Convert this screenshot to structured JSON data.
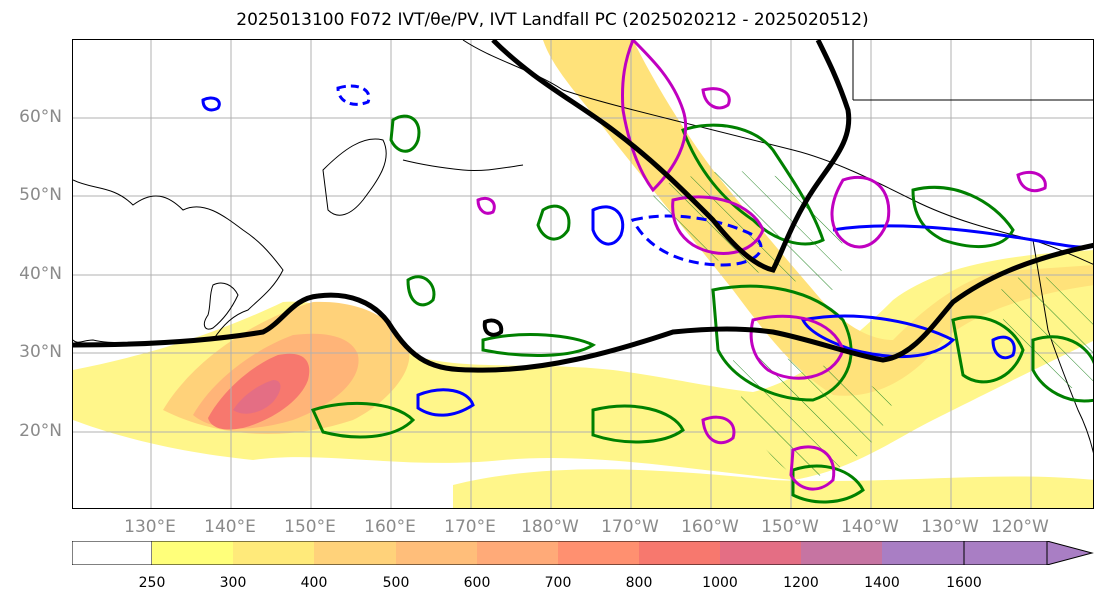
{
  "title": "2025013100 F072 IVT/θe/PV, IVT Landfall PC (2025020212 - 2025020512)",
  "map": {
    "lat_labels": [
      "60°N",
      "50°N",
      "40°N",
      "30°N",
      "20°N"
    ],
    "lon_labels": [
      "130°E",
      "140°E",
      "150°E",
      "160°E",
      "170°E",
      "180°W",
      "170°W",
      "160°W",
      "150°W",
      "140°W",
      "130°W",
      "120°W"
    ],
    "layers": [
      "IVT shading",
      "IVT 250 contour (black)",
      "θe contours (green)",
      "PV contours (blue)",
      "PV contours (magenta)",
      "IVT landfall PC hatching"
    ],
    "colors": {
      "coastline": "#000000",
      "ivt_contour": "#000000",
      "theta_e": "#008000",
      "pv_blue": "#0000ff",
      "pv_magenta": "#c000c0",
      "grid": "#b0b0b0"
    }
  },
  "colorbar": {
    "levels": [
      "250",
      "300",
      "400",
      "500",
      "600",
      "700",
      "800",
      "1000",
      "1200",
      "1400",
      "1600"
    ],
    "colors": [
      "#ffffff",
      "#ffff7a",
      "#ffea7a",
      "#ffd27a",
      "#ffbe7a",
      "#ffaa78",
      "#ff9070",
      "#f7786e",
      "#e46e84",
      "#c674a2",
      "#a97ec4"
    ]
  }
}
